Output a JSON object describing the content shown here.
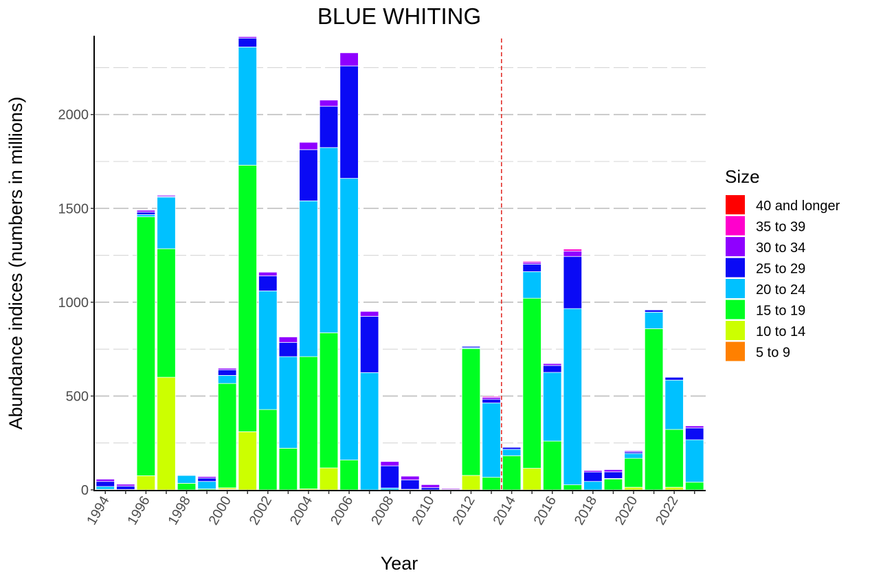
{
  "chart_data": {
    "type": "bar",
    "stacked": true,
    "title": "BLUE WHITING",
    "xlabel": "Year",
    "ylabel": "Abundance indices (numbers in millions)",
    "ylim": [
      0,
      2420
    ],
    "yticks": [
      0,
      500,
      1000,
      1500,
      2000
    ],
    "xtick_labels": [
      "1994",
      "1996",
      "1998",
      "2000",
      "2002",
      "2004",
      "2006",
      "2008",
      "2010",
      "2012",
      "2014",
      "2016",
      "2018",
      "2020",
      "2022"
    ],
    "grid": true,
    "legend": {
      "title": "Size",
      "placement": "right"
    },
    "reference_line": {
      "x": 2013.5,
      "color": "#E0201B",
      "style": "dashed"
    },
    "categories": [
      1994,
      1995,
      1996,
      1997,
      1998,
      1999,
      2000,
      2001,
      2002,
      2003,
      2004,
      2005,
      2006,
      2007,
      2008,
      2009,
      2010,
      2011,
      2012,
      2013,
      2014,
      2015,
      2016,
      2017,
      2018,
      2019,
      2020,
      2021,
      2022,
      2023
    ],
    "series": [
      {
        "name": "5 to 9",
        "color": "#FF8000",
        "values": [
          0,
          0,
          0,
          0,
          0,
          0,
          3,
          0,
          0,
          0,
          0,
          0,
          0,
          0,
          0,
          0,
          0,
          0,
          0,
          0,
          0,
          0,
          0,
          0,
          0,
          0,
          0,
          0,
          0,
          0
        ]
      },
      {
        "name": "10 to 14",
        "color": "#CCFF00",
        "values": [
          0,
          0,
          75,
          600,
          0,
          0,
          8,
          310,
          0,
          0,
          5,
          117,
          0,
          0,
          0,
          0,
          0,
          0,
          77,
          0,
          0,
          115,
          0,
          0,
          0,
          0,
          14,
          0,
          14,
          0
        ]
      },
      {
        "name": "15 to 19",
        "color": "#00FF22",
        "values": [
          3,
          0,
          1380,
          685,
          35,
          5,
          556,
          1420,
          428,
          222,
          705,
          720,
          159,
          0,
          0,
          0,
          0,
          0,
          676,
          67,
          182,
          906,
          260,
          27,
          0,
          58,
          154,
          859,
          308,
          41
        ]
      },
      {
        "name": "20 to 24",
        "color": "#00C1FF",
        "values": [
          15,
          2,
          12,
          275,
          42,
          40,
          43,
          630,
          632,
          488,
          830,
          987,
          1501,
          625,
          10,
          3,
          0,
          0,
          5,
          396,
          34,
          142,
          366,
          939,
          45,
          3,
          26,
          88,
          263,
          226
        ]
      },
      {
        "name": "25 to 29",
        "color": "#0A0AF5",
        "values": [
          27,
          18,
          13,
          4,
          3,
          18,
          30,
          47,
          80,
          76,
          273,
          220,
          599,
          300,
          118,
          50,
          12,
          2,
          7,
          20,
          11,
          40,
          37,
          278,
          50,
          35,
          8,
          12,
          15,
          63
        ]
      },
      {
        "name": "30 to 34",
        "color": "#8F00FF",
        "values": [
          12,
          10,
          10,
          6,
          3,
          8,
          8,
          8,
          20,
          29,
          39,
          33,
          70,
          26,
          23,
          20,
          16,
          5,
          3,
          10,
          2,
          9,
          10,
          28,
          8,
          12,
          6,
          2,
          3,
          11
        ]
      },
      {
        "name": "35 to 39",
        "color": "#FF00CC",
        "values": [
          0,
          0,
          0,
          0,
          0,
          0,
          0,
          0,
          0,
          0,
          0,
          0,
          0,
          0,
          0,
          0,
          0,
          0,
          0,
          5,
          0,
          6,
          0,
          11,
          0,
          0,
          0,
          0,
          0,
          0
        ]
      },
      {
        "name": "40 and longer",
        "color": "#FF0000",
        "values": [
          0,
          0,
          0,
          0,
          0,
          0,
          0,
          0,
          0,
          0,
          0,
          0,
          0,
          0,
          0,
          0,
          0,
          0,
          0,
          0,
          0,
          0,
          0,
          0,
          0,
          0,
          0,
          0,
          0,
          0
        ]
      }
    ]
  }
}
